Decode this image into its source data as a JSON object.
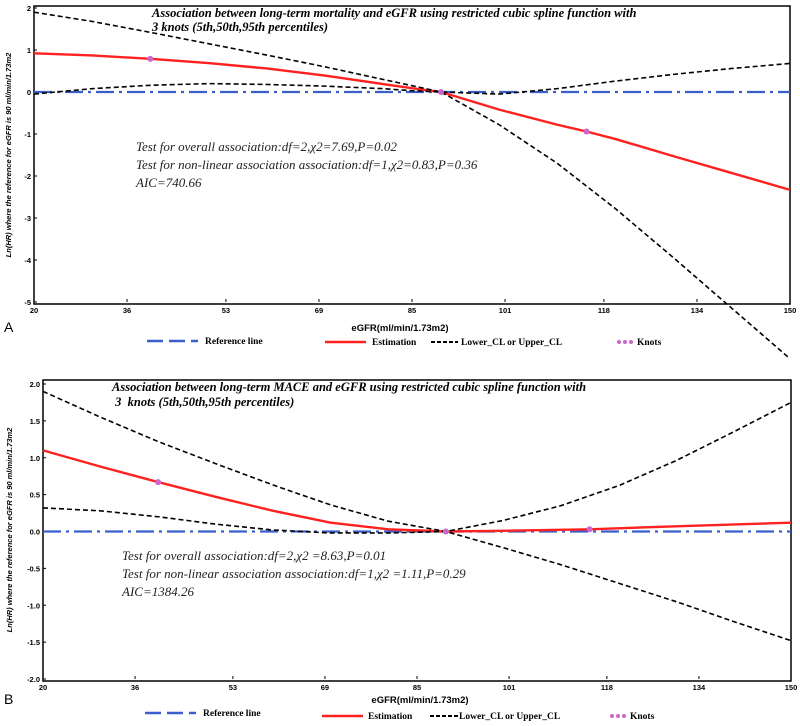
{
  "chart_data": [
    {
      "type": "line",
      "panel_label": "A",
      "title_lines": [
        "Association between long-term mortality and eGFR using restricted cubic spline function  with",
        "3 knots (5th,50th,95th percentiles)"
      ],
      "xlabel": "eGFR(ml/min/1.73m2)",
      "ylabel": "Ln(HR) where the reference for eGFR is 90 ml/min/1.73m2",
      "xlim": [
        20,
        150
      ],
      "ylim": [
        -5,
        2
      ],
      "xticks": [
        20,
        36,
        53,
        69,
        85,
        101,
        118,
        134,
        150
      ],
      "yticks": [
        -5,
        -4,
        -3,
        -2,
        -1,
        0,
        1,
        2
      ],
      "annotations": [
        "Test for overall association:df=2,χ2=7.69,P=0.02",
        "Test for non-linear association association:df=1,χ2=0.83,P=0.36",
        "AIC=740.66"
      ],
      "legend": [
        "Reference line",
        "Estimation",
        "Lower_CL or Upper_CL",
        "Knots"
      ],
      "series": [
        {
          "role": "reference",
          "color": "#3a5fcd",
          "x": [
            20,
            150
          ],
          "y": [
            0,
            0
          ]
        },
        {
          "role": "estimate",
          "color": "#ff2020",
          "x": [
            20,
            30,
            40,
            50,
            60,
            70,
            80,
            85,
            90,
            100,
            110,
            115,
            120,
            130,
            140,
            150
          ],
          "y": [
            0.92,
            0.87,
            0.79,
            0.69,
            0.56,
            0.39,
            0.19,
            0.09,
            0,
            -0.42,
            -0.78,
            -0.94,
            -1.12,
            -1.53,
            -1.93,
            -2.33
          ]
        },
        {
          "role": "upper_cl",
          "color": "#000000",
          "x": [
            20,
            30,
            40,
            50,
            60,
            70,
            80,
            85,
            90,
            100,
            110,
            120,
            130,
            140,
            150
          ],
          "y": [
            1.9,
            1.68,
            1.42,
            1.15,
            0.88,
            0.6,
            0.3,
            0.15,
            0,
            -0.05,
            0.08,
            0.26,
            0.42,
            0.56,
            0.68
          ]
        },
        {
          "role": "lower_cl",
          "color": "#000000",
          "x": [
            20,
            30,
            40,
            50,
            60,
            70,
            80,
            85,
            90,
            100,
            110,
            120,
            130,
            140,
            150
          ],
          "y": [
            -0.05,
            0.08,
            0.16,
            0.2,
            0.18,
            0.14,
            0.08,
            0.03,
            0,
            -0.78,
            -1.7,
            -2.78,
            -3.95,
            -5.15,
            -6.35
          ]
        },
        {
          "role": "knots",
          "color": "#cc66cc",
          "x": [
            40,
            90,
            115
          ],
          "y": [
            0.79,
            0,
            -0.94
          ]
        }
      ]
    },
    {
      "type": "line",
      "panel_label": "B",
      "title_lines": [
        "Association between long-term MACE and eGFR using restricted cubic spline function with",
        " 3  knots (5th,50th,95th percentiles)"
      ],
      "xlabel": "eGFR(ml/min/1.73m2)",
      "ylabel": "Ln(HR) where the reference for eGFR is 90 ml/min/1.73m2",
      "xlim": [
        20,
        150
      ],
      "ylim": [
        -2,
        2
      ],
      "xticks": [
        20,
        36,
        53,
        69,
        85,
        101,
        118,
        134,
        150
      ],
      "yticks": [
        -2.0,
        -1.5,
        -1.0,
        -0.5,
        0.0,
        0.5,
        1.0,
        1.5,
        2.0
      ],
      "annotations": [
        "Test for overall association:df=2,χ2 =8.63,P=0.01",
        "Test for non-linear association association:df=1,χ2 =1.11,P=0.29",
        "AIC=1384.26"
      ],
      "legend": [
        "Reference line",
        "Estimation",
        "Lower_CL or Upper_CL",
        "Knots"
      ],
      "series": [
        {
          "role": "reference",
          "color": "#3a5fcd",
          "x": [
            20,
            150
          ],
          "y": [
            0,
            0
          ]
        },
        {
          "role": "estimate",
          "color": "#ff2020",
          "x": [
            20,
            30,
            40,
            50,
            60,
            70,
            80,
            90,
            100,
            115,
            130,
            150
          ],
          "y": [
            1.1,
            0.88,
            0.67,
            0.47,
            0.28,
            0.12,
            0.03,
            0,
            0.01,
            0.03,
            0.07,
            0.12
          ]
        },
        {
          "role": "upper_cl",
          "color": "#000000",
          "x": [
            20,
            30,
            40,
            50,
            60,
            70,
            80,
            90,
            100,
            110,
            120,
            130,
            140,
            150
          ],
          "y": [
            1.9,
            1.55,
            1.22,
            0.92,
            0.63,
            0.36,
            0.14,
            0,
            0.15,
            0.35,
            0.62,
            0.96,
            1.35,
            1.75
          ]
        },
        {
          "role": "lower_cl",
          "color": "#000000",
          "x": [
            20,
            30,
            40,
            50,
            60,
            70,
            80,
            90,
            100,
            110,
            120,
            130,
            140,
            150
          ],
          "y": [
            0.32,
            0.28,
            0.2,
            0.1,
            0.02,
            -0.02,
            -0.02,
            0,
            -0.22,
            -0.45,
            -0.7,
            -0.95,
            -1.22,
            -1.48
          ]
        },
        {
          "role": "knots",
          "color": "#cc66cc",
          "x": [
            40,
            90,
            115
          ],
          "y": [
            0.67,
            0,
            0.03
          ]
        }
      ]
    }
  ]
}
